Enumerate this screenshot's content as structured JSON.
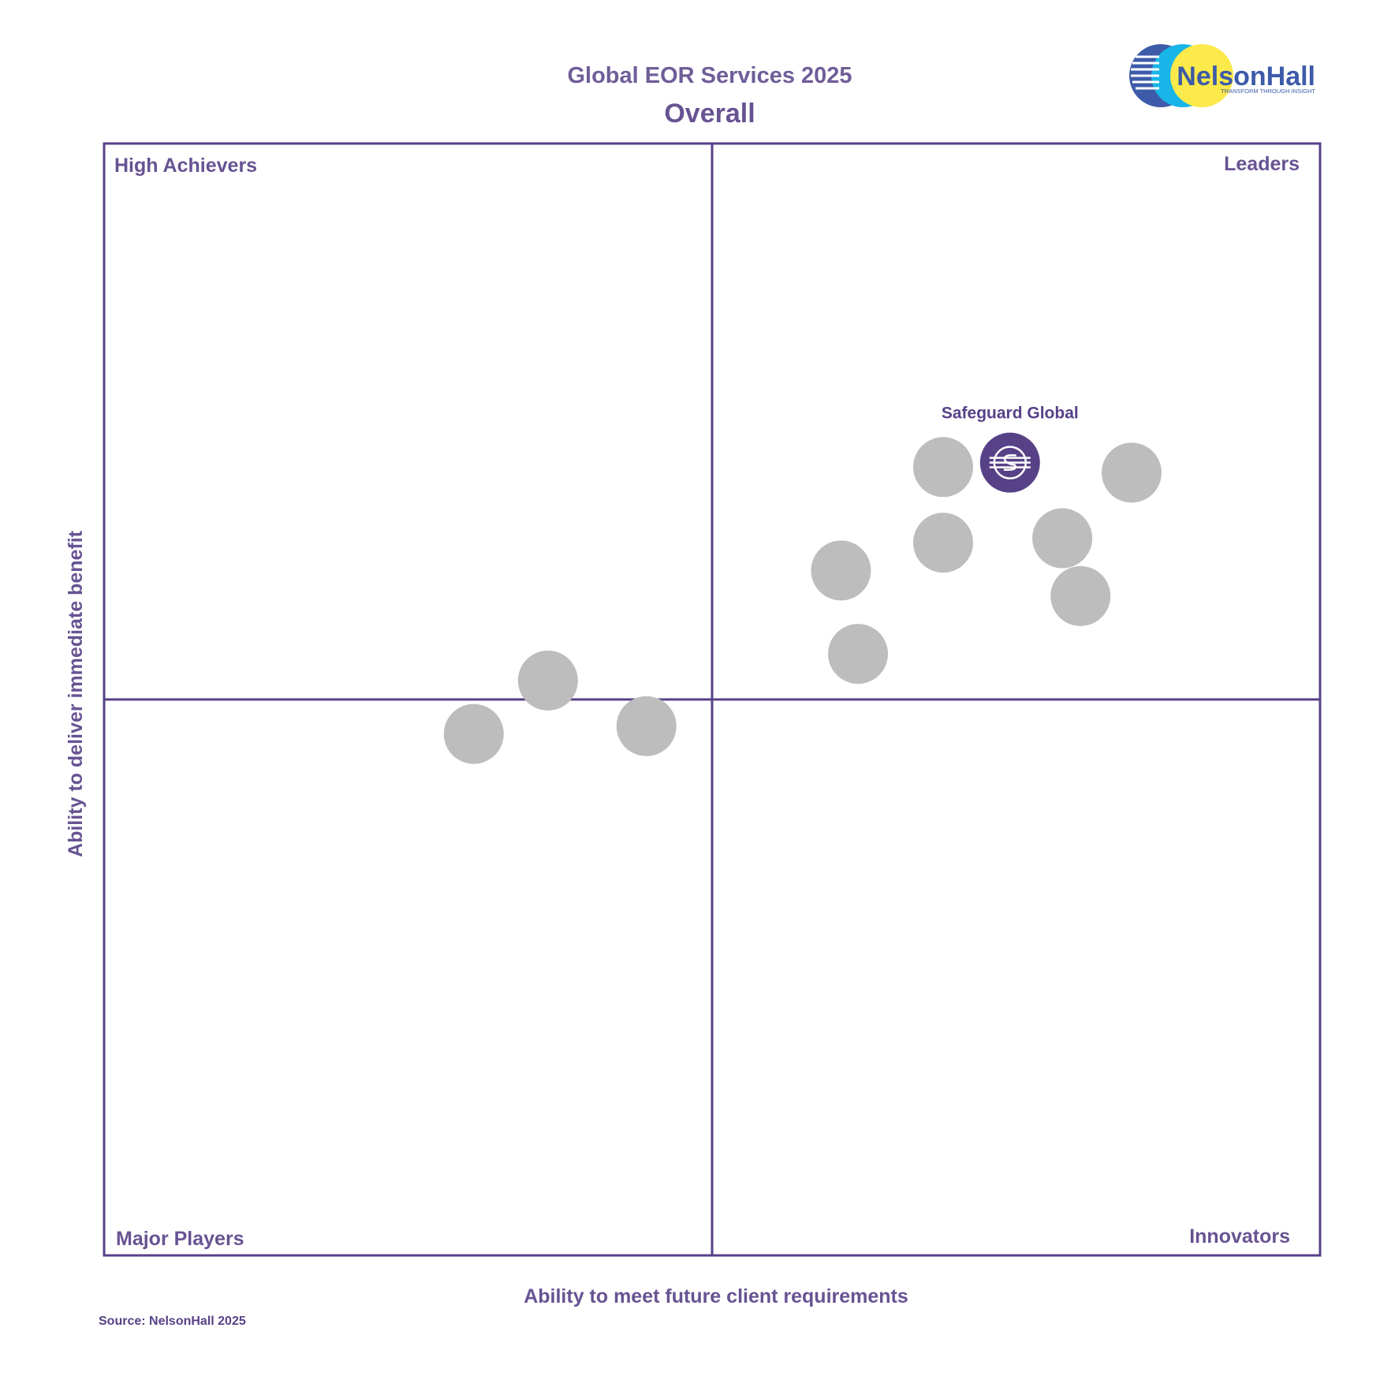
{
  "chart_data": {
    "type": "scatter",
    "title": "Global EOR Services 2025",
    "subtitle": "Overall",
    "xlabel": "Ability to meet future client requirements",
    "ylabel": "Ability to deliver immediate benefit",
    "xlim": [
      0,
      100
    ],
    "ylim": [
      0,
      100
    ],
    "quadrant_split": {
      "x": 50,
      "y": 50
    },
    "quadrants": {
      "top_left": "High Achievers",
      "top_right": "Leaders",
      "bottom_left": "Major Players",
      "bottom_right": "Innovators"
    },
    "points": [
      {
        "x": 74.5,
        "y": 71.3,
        "highlight": true,
        "label": "Safeguard Global"
      },
      {
        "x": 69.0,
        "y": 70.9,
        "highlight": false,
        "label": ""
      },
      {
        "x": 84.5,
        "y": 70.4,
        "highlight": false,
        "label": ""
      },
      {
        "x": 69.0,
        "y": 64.1,
        "highlight": false,
        "label": ""
      },
      {
        "x": 78.8,
        "y": 64.5,
        "highlight": false,
        "label": ""
      },
      {
        "x": 60.6,
        "y": 61.6,
        "highlight": false,
        "label": ""
      },
      {
        "x": 80.3,
        "y": 59.3,
        "highlight": false,
        "label": ""
      },
      {
        "x": 62.0,
        "y": 54.1,
        "highlight": false,
        "label": ""
      },
      {
        "x": 36.5,
        "y": 51.7,
        "highlight": false,
        "label": ""
      },
      {
        "x": 30.4,
        "y": 46.9,
        "highlight": false,
        "label": ""
      },
      {
        "x": 44.6,
        "y": 47.6,
        "highlight": false,
        "label": ""
      }
    ]
  },
  "colors": {
    "accent": "#574187",
    "point": "#BDBDBD",
    "highlight": "#574187",
    "logo_dark_blue": "#3D5BA8",
    "logo_cyan": "#17B5E8",
    "logo_yellow": "#FCE94A"
  },
  "logo": {
    "name": "NelsonHall",
    "tagline": "TRANSFORM THROUGH INSIGHT"
  },
  "source": "Source: NelsonHall 2025"
}
